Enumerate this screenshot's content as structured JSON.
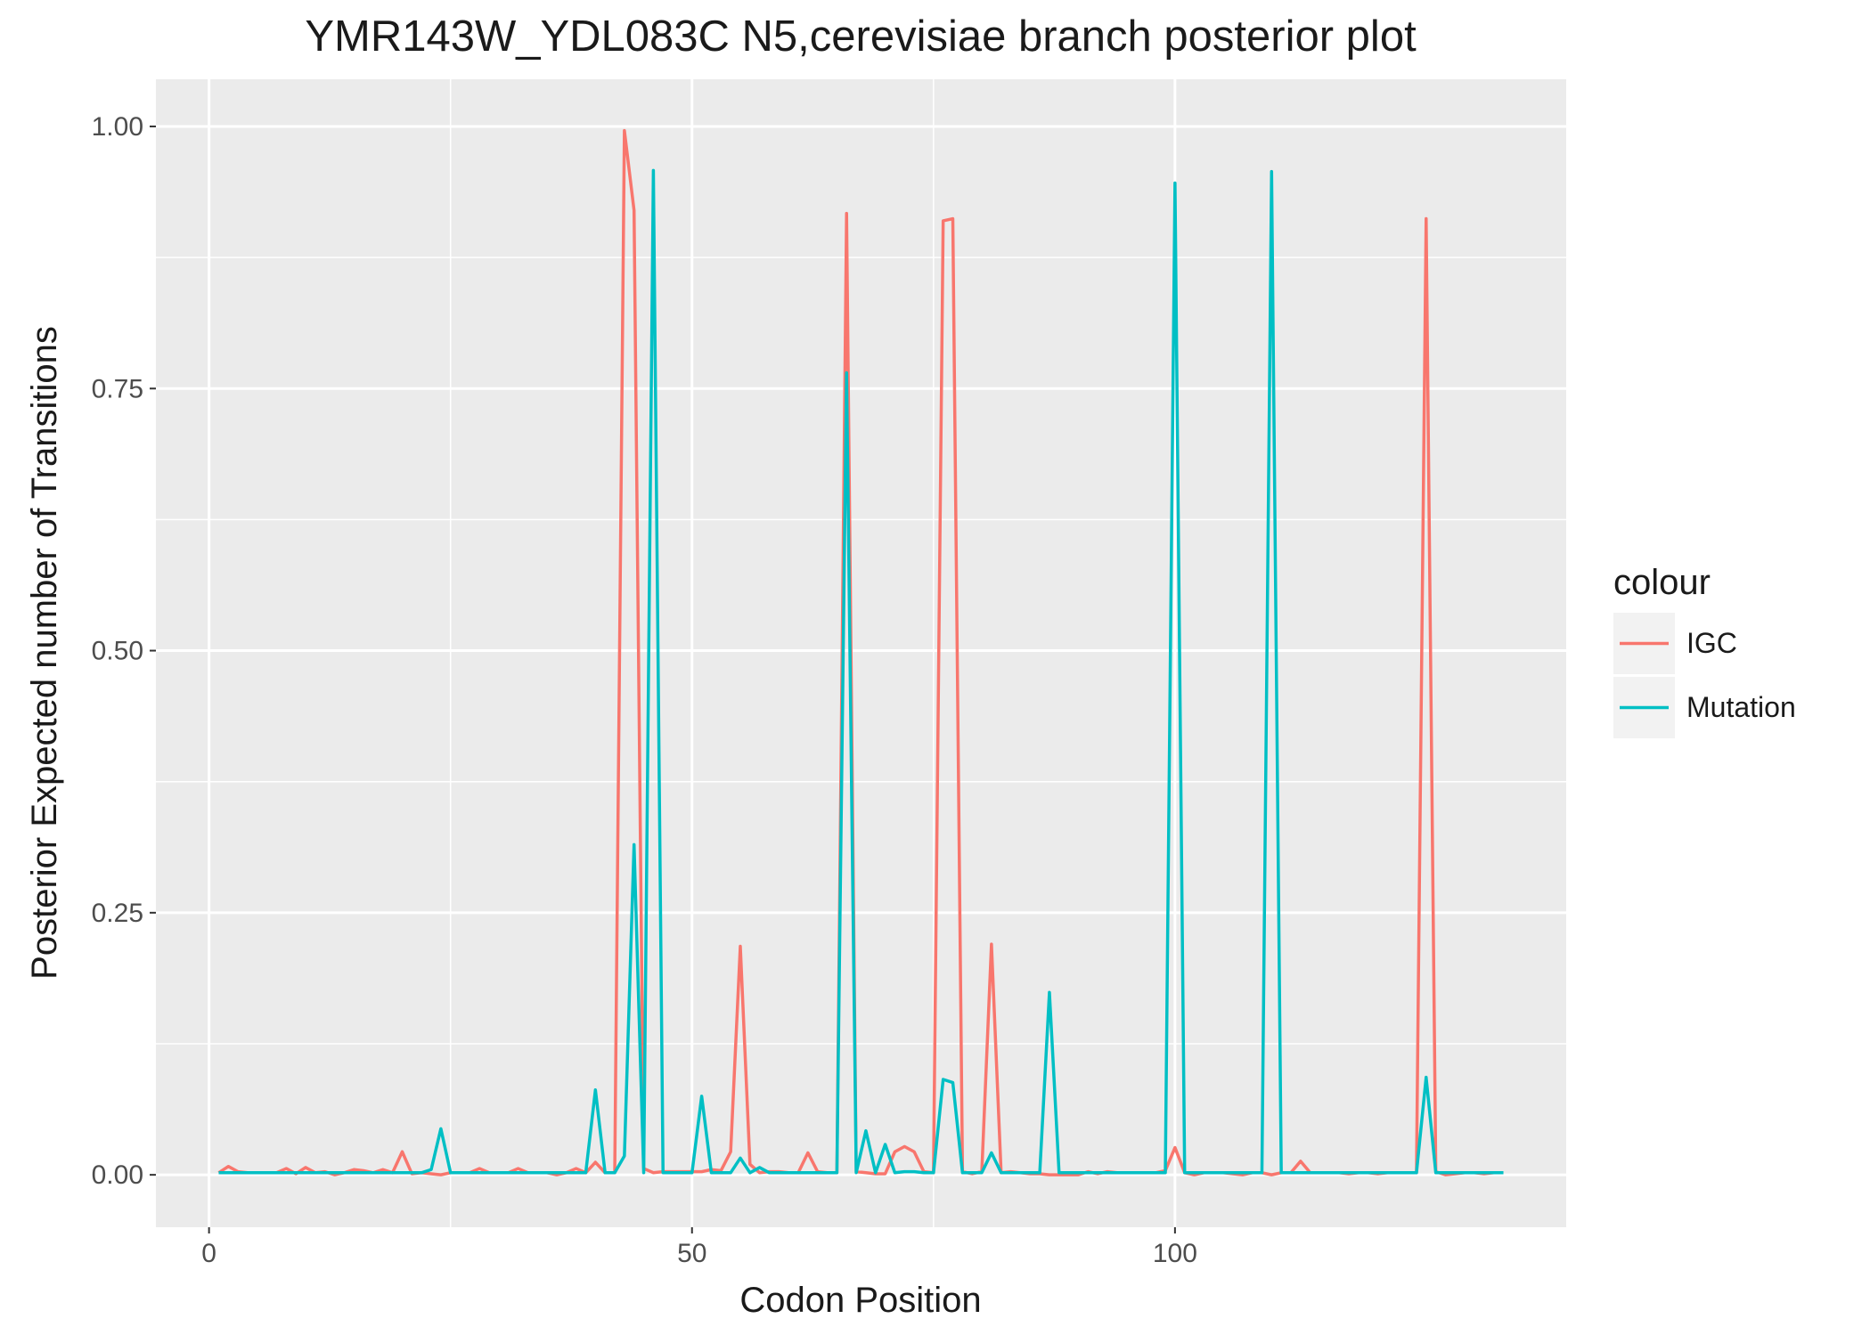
{
  "chart_data": {
    "type": "line",
    "title": "YMR143W_YDL083C N5,cerevisiae branch posterior plot",
    "xlabel": "Codon Position",
    "ylabel": "Posterior Expected number of Transitions",
    "xlim": [
      -5.5,
      140.5
    ],
    "ylim": [
      -0.05,
      1.045
    ],
    "x_ticks": [
      0,
      50,
      100
    ],
    "x_tick_labels": [
      "0",
      "50",
      "100"
    ],
    "y_ticks": [
      0,
      0.25,
      0.5,
      0.75,
      1
    ],
    "y_tick_labels": [
      "0.00",
      "0.25",
      "0.50",
      "0.75",
      "1.00"
    ],
    "grid": true,
    "legend": {
      "title": "colour",
      "position": "right"
    },
    "series": [
      {
        "name": "IGC",
        "color": "#F8766D",
        "points": [
          [
            1,
            0.002
          ],
          [
            2,
            0.008
          ],
          [
            3,
            0.003
          ],
          [
            4,
            0.002
          ],
          [
            5,
            0.002
          ],
          [
            6,
            0.002
          ],
          [
            7,
            0.002
          ],
          [
            8,
            0.006
          ],
          [
            9,
            0.001
          ],
          [
            10,
            0.007
          ],
          [
            11,
            0.002
          ],
          [
            12,
            0.003
          ],
          [
            13,
            0.0
          ],
          [
            14,
            0.002
          ],
          [
            15,
            0.005
          ],
          [
            16,
            0.004
          ],
          [
            17,
            0.002
          ],
          [
            18,
            0.005
          ],
          [
            19,
            0.002
          ],
          [
            20,
            0.022
          ],
          [
            21,
            0.001
          ],
          [
            22,
            0.002
          ],
          [
            23,
            0.001
          ],
          [
            24,
            0.0
          ],
          [
            25,
            0.002
          ],
          [
            26,
            0.002
          ],
          [
            27,
            0.002
          ],
          [
            28,
            0.006
          ],
          [
            29,
            0.002
          ],
          [
            30,
            0.002
          ],
          [
            31,
            0.002
          ],
          [
            32,
            0.006
          ],
          [
            33,
            0.002
          ],
          [
            34,
            0.002
          ],
          [
            35,
            0.002
          ],
          [
            36,
            0.0
          ],
          [
            37,
            0.002
          ],
          [
            38,
            0.006
          ],
          [
            39,
            0.002
          ],
          [
            40,
            0.012
          ],
          [
            41,
            0.002
          ],
          [
            42,
            0.002
          ],
          [
            43,
            0.996
          ],
          [
            44,
            0.92
          ],
          [
            45,
            0.006
          ],
          [
            46,
            0.002
          ],
          [
            47,
            0.003
          ],
          [
            48,
            0.003
          ],
          [
            49,
            0.003
          ],
          [
            50,
            0.003
          ],
          [
            51,
            0.003
          ],
          [
            52,
            0.005
          ],
          [
            53,
            0.004
          ],
          [
            54,
            0.022
          ],
          [
            55,
            0.218
          ],
          [
            56,
            0.01
          ],
          [
            57,
            0.002
          ],
          [
            58,
            0.003
          ],
          [
            59,
            0.003
          ],
          [
            60,
            0.002
          ],
          [
            61,
            0.002
          ],
          [
            62,
            0.021
          ],
          [
            63,
            0.003
          ],
          [
            64,
            0.002
          ],
          [
            65,
            0.002
          ],
          [
            66,
            0.917
          ],
          [
            67,
            0.003
          ],
          [
            68,
            0.002
          ],
          [
            69,
            0.001
          ],
          [
            70,
            0.001
          ],
          [
            71,
            0.022
          ],
          [
            72,
            0.027
          ],
          [
            73,
            0.022
          ],
          [
            74,
            0.003
          ],
          [
            75,
            0.002
          ],
          [
            76,
            0.91
          ],
          [
            77,
            0.912
          ],
          [
            78,
            0.003
          ],
          [
            79,
            0.001
          ],
          [
            80,
            0.003
          ],
          [
            81,
            0.22
          ],
          [
            82,
            0.002
          ],
          [
            83,
            0.003
          ],
          [
            84,
            0.002
          ],
          [
            85,
            0.001
          ],
          [
            86,
            0.001
          ],
          [
            87,
            0.0
          ],
          [
            88,
            0.0
          ],
          [
            89,
            0.0
          ],
          [
            90,
            0.0
          ],
          [
            91,
            0.003
          ],
          [
            92,
            0.001
          ],
          [
            93,
            0.003
          ],
          [
            94,
            0.002
          ],
          [
            95,
            0.002
          ],
          [
            96,
            0.002
          ],
          [
            97,
            0.002
          ],
          [
            98,
            0.002
          ],
          [
            99,
            0.004
          ],
          [
            100,
            0.026
          ],
          [
            101,
            0.002
          ],
          [
            102,
            0.0
          ],
          [
            103,
            0.002
          ],
          [
            104,
            0.002
          ],
          [
            105,
            0.002
          ],
          [
            106,
            0.001
          ],
          [
            107,
            0.0
          ],
          [
            108,
            0.002
          ],
          [
            109,
            0.002
          ],
          [
            110,
            0.0
          ],
          [
            111,
            0.002
          ],
          [
            112,
            0.002
          ],
          [
            113,
            0.013
          ],
          [
            114,
            0.002
          ],
          [
            115,
            0.002
          ],
          [
            116,
            0.002
          ],
          [
            117,
            0.002
          ],
          [
            118,
            0.001
          ],
          [
            119,
            0.002
          ],
          [
            120,
            0.002
          ],
          [
            121,
            0.001
          ],
          [
            122,
            0.002
          ],
          [
            123,
            0.002
          ],
          [
            124,
            0.002
          ],
          [
            125,
            0.002
          ],
          [
            126,
            0.912
          ],
          [
            127,
            0.003
          ],
          [
            128,
            0.0
          ],
          [
            129,
            0.001
          ],
          [
            130,
            0.002
          ],
          [
            131,
            0.002
          ],
          [
            132,
            0.001
          ],
          [
            133,
            0.002
          ],
          [
            134,
            0.002
          ]
        ]
      },
      {
        "name": "Mutation",
        "color": "#00BFC4",
        "points": [
          [
            1,
            0.002
          ],
          [
            2,
            0.002
          ],
          [
            3,
            0.002
          ],
          [
            4,
            0.002
          ],
          [
            5,
            0.002
          ],
          [
            6,
            0.002
          ],
          [
            7,
            0.002
          ],
          [
            8,
            0.002
          ],
          [
            9,
            0.002
          ],
          [
            10,
            0.002
          ],
          [
            11,
            0.002
          ],
          [
            12,
            0.002
          ],
          [
            13,
            0.002
          ],
          [
            14,
            0.002
          ],
          [
            15,
            0.002
          ],
          [
            16,
            0.002
          ],
          [
            17,
            0.002
          ],
          [
            18,
            0.002
          ],
          [
            19,
            0.002
          ],
          [
            20,
            0.002
          ],
          [
            21,
            0.002
          ],
          [
            22,
            0.002
          ],
          [
            23,
            0.005
          ],
          [
            24,
            0.044
          ],
          [
            25,
            0.002
          ],
          [
            26,
            0.002
          ],
          [
            27,
            0.002
          ],
          [
            28,
            0.002
          ],
          [
            29,
            0.002
          ],
          [
            30,
            0.002
          ],
          [
            31,
            0.002
          ],
          [
            32,
            0.002
          ],
          [
            33,
            0.002
          ],
          [
            34,
            0.002
          ],
          [
            35,
            0.002
          ],
          [
            36,
            0.002
          ],
          [
            37,
            0.002
          ],
          [
            38,
            0.002
          ],
          [
            39,
            0.002
          ],
          [
            40,
            0.081
          ],
          [
            41,
            0.002
          ],
          [
            42,
            0.002
          ],
          [
            43,
            0.018
          ],
          [
            44,
            0.315
          ],
          [
            45,
            0.002
          ],
          [
            46,
            0.958
          ],
          [
            47,
            0.002
          ],
          [
            48,
            0.002
          ],
          [
            49,
            0.002
          ],
          [
            50,
            0.002
          ],
          [
            51,
            0.075
          ],
          [
            52,
            0.002
          ],
          [
            53,
            0.002
          ],
          [
            54,
            0.002
          ],
          [
            55,
            0.016
          ],
          [
            56,
            0.002
          ],
          [
            57,
            0.007
          ],
          [
            58,
            0.002
          ],
          [
            59,
            0.002
          ],
          [
            60,
            0.002
          ],
          [
            61,
            0.002
          ],
          [
            62,
            0.002
          ],
          [
            63,
            0.002
          ],
          [
            64,
            0.002
          ],
          [
            65,
            0.002
          ],
          [
            66,
            0.765
          ],
          [
            67,
            0.002
          ],
          [
            68,
            0.042
          ],
          [
            69,
            0.002
          ],
          [
            70,
            0.029
          ],
          [
            71,
            0.002
          ],
          [
            72,
            0.003
          ],
          [
            73,
            0.003
          ],
          [
            74,
            0.002
          ],
          [
            75,
            0.002
          ],
          [
            76,
            0.091
          ],
          [
            77,
            0.088
          ],
          [
            78,
            0.002
          ],
          [
            79,
            0.002
          ],
          [
            80,
            0.002
          ],
          [
            81,
            0.021
          ],
          [
            82,
            0.002
          ],
          [
            83,
            0.002
          ],
          [
            84,
            0.002
          ],
          [
            85,
            0.002
          ],
          [
            86,
            0.002
          ],
          [
            87,
            0.174
          ],
          [
            88,
            0.002
          ],
          [
            89,
            0.002
          ],
          [
            90,
            0.002
          ],
          [
            91,
            0.002
          ],
          [
            92,
            0.002
          ],
          [
            93,
            0.002
          ],
          [
            94,
            0.002
          ],
          [
            95,
            0.002
          ],
          [
            96,
            0.002
          ],
          [
            97,
            0.002
          ],
          [
            98,
            0.002
          ],
          [
            99,
            0.002
          ],
          [
            100,
            0.946
          ],
          [
            101,
            0.002
          ],
          [
            102,
            0.002
          ],
          [
            103,
            0.002
          ],
          [
            104,
            0.002
          ],
          [
            105,
            0.002
          ],
          [
            106,
            0.002
          ],
          [
            107,
            0.002
          ],
          [
            108,
            0.002
          ],
          [
            109,
            0.002
          ],
          [
            110,
            0.957
          ],
          [
            111,
            0.002
          ],
          [
            112,
            0.002
          ],
          [
            113,
            0.002
          ],
          [
            114,
            0.002
          ],
          [
            115,
            0.002
          ],
          [
            116,
            0.002
          ],
          [
            117,
            0.002
          ],
          [
            118,
            0.002
          ],
          [
            119,
            0.002
          ],
          [
            120,
            0.002
          ],
          [
            121,
            0.002
          ],
          [
            122,
            0.002
          ],
          [
            123,
            0.002
          ],
          [
            124,
            0.002
          ],
          [
            125,
            0.002
          ],
          [
            126,
            0.093
          ],
          [
            127,
            0.002
          ],
          [
            128,
            0.002
          ],
          [
            129,
            0.002
          ],
          [
            130,
            0.002
          ],
          [
            131,
            0.002
          ],
          [
            132,
            0.002
          ],
          [
            133,
            0.002
          ],
          [
            134,
            0.002
          ]
        ]
      }
    ]
  }
}
